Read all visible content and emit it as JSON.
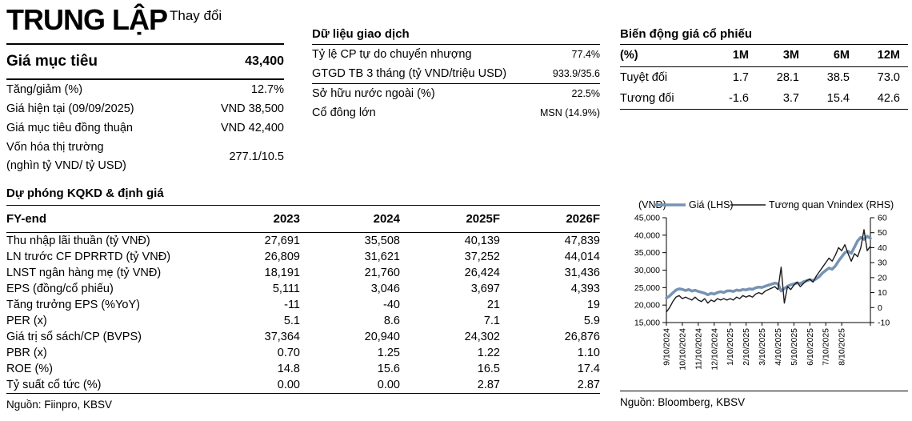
{
  "rating": {
    "label": "TRUNG LẬP",
    "sublabel": "Thay đổi"
  },
  "target": {
    "label": "Giá mục tiêu",
    "value": "43,400"
  },
  "summary": {
    "rows": [
      {
        "label": "Tăng/giảm (%)",
        "value": "12.7%"
      },
      {
        "label": "Giá hiện tại (09/09/2025)",
        "value": "VND 38,500"
      },
      {
        "label": "Giá mục tiêu đồng thuận",
        "value": "VND 42,400"
      },
      {
        "label": "Vốn hóa thị trường",
        "label2": "(nghìn tỷ VND/ tỷ USD)",
        "value": "277.1/10.5"
      }
    ]
  },
  "trading": {
    "title": "Dữ liệu giao dịch",
    "rows": [
      {
        "label": "Tỷ lệ CP tự do chuyển nhượng",
        "value": "77.4%"
      },
      {
        "label": "GTGD TB 3 tháng (tỷ VND/triệu USD)",
        "value": "933.9/35.6"
      },
      {
        "label": "Sở hữu nước ngoài (%)",
        "value": "22.5%"
      },
      {
        "label": "Cổ đông lớn",
        "value": "MSN (14.9%)"
      }
    ]
  },
  "momentum": {
    "title": "Biến động giá cổ phiếu",
    "headers": [
      "(%)",
      "1M",
      "3M",
      "6M",
      "12M"
    ],
    "rows": [
      {
        "label": "Tuyệt đối",
        "values": [
          "1.7",
          "28.1",
          "38.5",
          "73.0"
        ]
      },
      {
        "label": "Tương đối",
        "values": [
          "-1.6",
          "3.7",
          "15.4",
          "42.6"
        ]
      }
    ]
  },
  "forecast": {
    "title": "Dự phóng KQKD & định giá",
    "headers": [
      "FY-end",
      "2023",
      "2024",
      "2025F",
      "2026F"
    ],
    "rows": [
      {
        "label": "Thu nhập lãi thuần (tỷ VNĐ)",
        "values": [
          "27,691",
          "35,508",
          "40,139",
          "47,839"
        ]
      },
      {
        "label": "LN trước CF DPRRTD (tỷ VNĐ)",
        "values": [
          "26,809",
          "31,621",
          "37,252",
          "44,014"
        ]
      },
      {
        "label": "LNST ngân hàng mẹ (tỷ VNĐ)",
        "values": [
          "18,191",
          "21,760",
          "26,424",
          "31,436"
        ]
      },
      {
        "label": "EPS (đồng/cổ phiếu)",
        "values": [
          "5,111",
          "3,046",
          "3,697",
          "4,393"
        ]
      },
      {
        "label": "Tăng trưởng EPS (%YoY)",
        "values": [
          "-11",
          "-40",
          "21",
          "19"
        ]
      },
      {
        "label": "PER (x)",
        "values": [
          "5.1",
          "8.6",
          "7.1",
          "5.9"
        ]
      },
      {
        "label": "Giá trị sổ sách/CP (BVPS)",
        "values": [
          "37,364",
          "20,940",
          "24,302",
          "26,876"
        ]
      },
      {
        "label": "PBR (x)",
        "values": [
          "0.70",
          "1.25",
          "1.22",
          "1.10"
        ]
      },
      {
        "label": "ROE (%)",
        "values": [
          "14.8",
          "15.6",
          "16.5",
          "17.4"
        ]
      },
      {
        "label": "Tỷ suất cổ tức (%)",
        "values": [
          "0.00",
          "0.00",
          "2.87",
          "2.87"
        ]
      }
    ],
    "source": "Nguồn: Fiinpro, KBSV"
  },
  "chart_data": {
    "type": "line",
    "unit_label": "(VND)",
    "legend": [
      {
        "name": "Giá (LHS)",
        "color": "#7693b3",
        "width": 3.5
      },
      {
        "name": "Tương quan Vnindex (RHS)",
        "color": "#1a1a1a",
        "width": 1.4
      }
    ],
    "x_ticks": [
      "9/10/2024",
      "10/10/2024",
      "11/10/2024",
      "12/10/2024",
      "1/10/2025",
      "2/10/2025",
      "3/10/2025",
      "4/10/2025",
      "5/10/2025",
      "6/10/2025",
      "7/10/2025",
      "8/10/2025"
    ],
    "left_axis": {
      "min": 15000,
      "max": 45000,
      "step": 5000
    },
    "right_axis": {
      "min": -10,
      "max": 60,
      "step": 10
    },
    "series": [
      {
        "name": "Giá (LHS)",
        "axis": "left",
        "values": [
          22000,
          22600,
          23500,
          24300,
          24650,
          24500,
          24150,
          24450,
          24000,
          24250,
          23900,
          23650,
          23400,
          22950,
          23350,
          23150,
          23600,
          23850,
          23600,
          24050,
          24100,
          23900,
          24300,
          24150,
          24450,
          24350,
          24650,
          24500,
          24950,
          25150,
          25050,
          25400,
          25700,
          26000,
          26300,
          26100,
          24050,
          24700,
          25400,
          25800,
          26050,
          26350,
          26150,
          26650,
          26950,
          27250,
          27050,
          27500,
          28200,
          29200,
          29900,
          30600,
          30250,
          31200,
          32600,
          33800,
          35000,
          35400,
          34800,
          36600,
          38400,
          39400,
          38800,
          39700,
          39100
        ]
      },
      {
        "name": "Tương quan Vnindex (RHS)",
        "axis": "right",
        "values": [
          -3,
          0,
          4,
          7,
          8,
          6,
          7,
          6,
          5,
          7,
          5,
          4,
          6,
          3,
          5,
          4,
          6,
          5,
          6,
          5,
          6,
          5,
          7,
          6,
          8,
          7,
          8,
          7,
          9,
          10,
          9,
          11,
          12,
          13,
          14,
          12,
          27,
          3,
          14,
          12,
          15,
          17,
          14,
          16,
          18,
          19,
          17,
          21,
          24,
          27,
          30,
          33,
          31,
          35,
          40,
          38,
          42,
          36,
          31,
          36,
          34,
          40,
          52,
          38,
          41
        ]
      }
    ],
    "source": "Nguồn: Bloomberg, KBSV"
  }
}
